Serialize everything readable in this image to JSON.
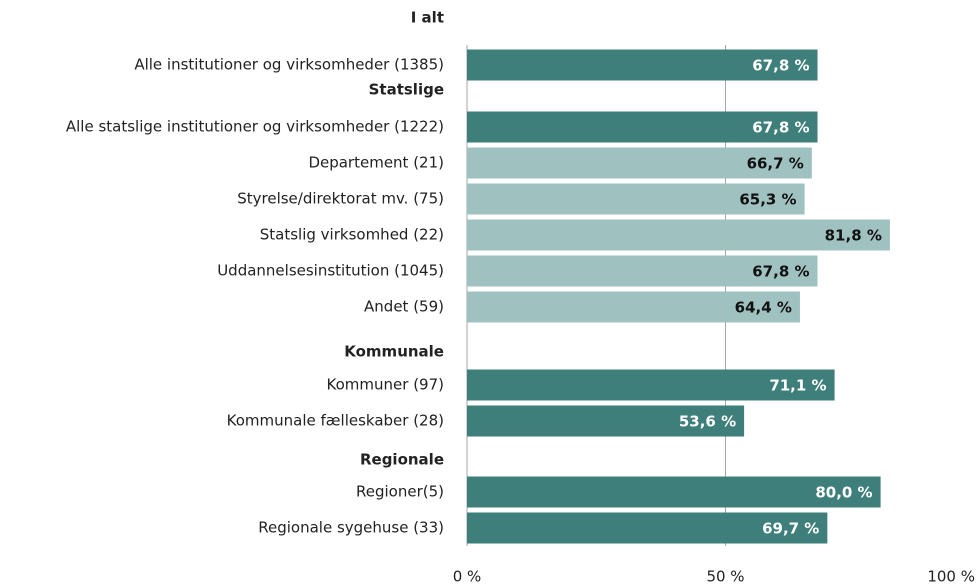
{
  "chart_data": {
    "type": "bar",
    "orientation": "horizontal",
    "categories": [
      "I alt",
      "Alle institutioner og virksomheder (1385)",
      "Statslige",
      "Alle statslige institutioner og virksomheder (1222)",
      "Departement (21)",
      "Styrelse/direktorat mv. (75)",
      "Statslig virksomhed (22)",
      "Uddannelsesinstitution (1045)",
      "Andet (59)",
      "Kommunale",
      "Kommuner (97)",
      "Kommunale fælleskaber (28)",
      "Regionale",
      "Regioner(5)",
      "Regionale sygehuse (33)"
    ],
    "values": [
      null,
      67.8,
      null,
      67.8,
      66.7,
      65.3,
      81.8,
      67.8,
      64.4,
      null,
      71.1,
      53.6,
      null,
      80.0,
      69.7
    ],
    "value_labels": [
      null,
      "67,8 %",
      null,
      "67,8 %",
      "66,7 %",
      "65,3 %",
      "81,8 %",
      "67,8 %",
      "64,4 %",
      null,
      "71,1 %",
      "53,6 %",
      null,
      "80,0 %",
      "69,7 %"
    ],
    "colors": [
      null,
      "#3f7f7b",
      null,
      "#3f7f7b",
      "#9fc1c0",
      "#9fc1c0",
      "#9fc1c0",
      "#9fc1c0",
      "#9fc1c0",
      null,
      "#3f7f7b",
      "#3f7f7b",
      null,
      "#3f7f7b",
      "#3f7f7b"
    ],
    "xlim": [
      0,
      100
    ],
    "xticks": [
      {
        "value": 0,
        "label": "0 %"
      },
      {
        "value": 50,
        "label": "50 %"
      },
      {
        "value": 100,
        "label": "100 %"
      }
    ],
    "grid": true
  }
}
